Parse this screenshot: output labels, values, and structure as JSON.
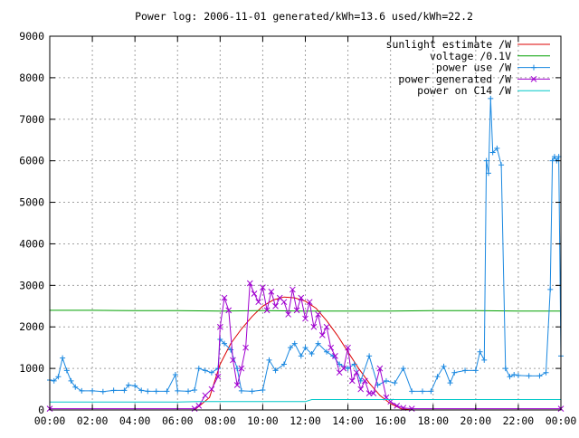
{
  "chart_data": {
    "type": "line",
    "title": "Power log: 2006-11-01 generated/kWh=13.6 used/kWh=22.2",
    "xlabel": "",
    "ylabel": "",
    "x_unit": "hours",
    "xlim": [
      0,
      24
    ],
    "ylim": [
      0,
      9000
    ],
    "grid": true,
    "legend_position": "top-right",
    "x_ticks": [
      {
        "value": 0,
        "label": "00:00"
      },
      {
        "value": 2,
        "label": "02:00"
      },
      {
        "value": 4,
        "label": "04:00"
      },
      {
        "value": 6,
        "label": "06:00"
      },
      {
        "value": 8,
        "label": "08:00"
      },
      {
        "value": 10,
        "label": "10:00"
      },
      {
        "value": 12,
        "label": "12:00"
      },
      {
        "value": 14,
        "label": "14:00"
      },
      {
        "value": 16,
        "label": "16:00"
      },
      {
        "value": 18,
        "label": "18:00"
      },
      {
        "value": 20,
        "label": "20:00"
      },
      {
        "value": 22,
        "label": "22:00"
      },
      {
        "value": 24,
        "label": "00:00"
      }
    ],
    "y_ticks": [
      {
        "value": 0,
        "label": "0"
      },
      {
        "value": 1000,
        "label": "1000"
      },
      {
        "value": 2000,
        "label": "2000"
      },
      {
        "value": 3000,
        "label": "3000"
      },
      {
        "value": 4000,
        "label": "4000"
      },
      {
        "value": 5000,
        "label": "5000"
      },
      {
        "value": 6000,
        "label": "6000"
      },
      {
        "value": 7000,
        "label": "7000"
      },
      {
        "value": 8000,
        "label": "8000"
      },
      {
        "value": 9000,
        "label": "9000"
      }
    ],
    "series": [
      {
        "name": "sunlight estimate /W",
        "color": "#dd0000",
        "marker": "none",
        "x": [
          0,
          6.8,
          7.5,
          8.0,
          8.5,
          9.0,
          9.5,
          10.0,
          10.5,
          11.0,
          11.5,
          12.0,
          12.5,
          13.0,
          13.5,
          14.0,
          14.5,
          15.0,
          15.5,
          16.0,
          16.5,
          17.0,
          24
        ],
        "y": [
          0,
          0,
          300,
          1100,
          1600,
          1950,
          2250,
          2500,
          2650,
          2720,
          2700,
          2620,
          2450,
          2150,
          1800,
          1400,
          1000,
          650,
          350,
          150,
          30,
          0,
          0
        ]
      },
      {
        "name": "voltage /0.1V",
        "color": "#00a000",
        "marker": "none",
        "x": [
          0,
          2,
          4,
          6,
          8,
          10,
          12,
          14,
          16,
          18,
          20,
          22,
          24
        ],
        "y": [
          2400,
          2400,
          2390,
          2390,
          2380,
          2390,
          2380,
          2380,
          2380,
          2390,
          2390,
          2380,
          2380
        ]
      },
      {
        "name": "power use /W",
        "color": "#1a88e0",
        "marker": "plus",
        "x": [
          0,
          0.2,
          0.4,
          0.6,
          0.8,
          1.0,
          1.2,
          1.5,
          2.0,
          2.5,
          3.0,
          3.5,
          3.7,
          4.0,
          4.3,
          4.6,
          5.0,
          5.5,
          5.9,
          6.0,
          6.5,
          6.8,
          7.0,
          7.3,
          7.6,
          7.9,
          8.0,
          8.2,
          8.5,
          8.8,
          9.0,
          9.5,
          10.0,
          10.3,
          10.6,
          11.0,
          11.3,
          11.5,
          11.8,
          12.0,
          12.3,
          12.6,
          13.0,
          13.3,
          13.6,
          14.0,
          14.3,
          14.6,
          15.0,
          15.4,
          15.8,
          16.2,
          16.6,
          17.0,
          17.5,
          17.9,
          18.2,
          18.5,
          18.8,
          19.0,
          19.5,
          20.0,
          20.2,
          20.4,
          20.5,
          20.6,
          20.7,
          20.8,
          21.0,
          21.2,
          21.4,
          21.6,
          21.8,
          22.0,
          22.5,
          23.0,
          23.3,
          23.5,
          23.6,
          23.7,
          23.8,
          23.9,
          24.0
        ],
        "y": [
          720,
          700,
          800,
          1250,
          950,
          700,
          550,
          460,
          460,
          440,
          470,
          470,
          600,
          580,
          470,
          450,
          450,
          450,
          850,
          460,
          450,
          480,
          1000,
          950,
          900,
          1000,
          1700,
          1600,
          1450,
          1000,
          460,
          450,
          480,
          1200,
          950,
          1100,
          1500,
          1600,
          1300,
          1500,
          1350,
          1600,
          1400,
          1300,
          1100,
          1000,
          1100,
          700,
          1300,
          600,
          700,
          650,
          1000,
          450,
          450,
          450,
          800,
          1050,
          650,
          900,
          950,
          950,
          1400,
          1200,
          6000,
          5700,
          7500,
          6200,
          6300,
          5900,
          1000,
          800,
          850,
          830,
          820,
          820,
          900,
          2900,
          6000,
          6100,
          6000,
          6100,
          1300
        ]
      },
      {
        "name": "power generated /W",
        "color": "#a000d0",
        "marker": "cross",
        "x": [
          0,
          6.8,
          7.0,
          7.3,
          7.6,
          7.9,
          8.0,
          8.2,
          8.4,
          8.6,
          8.8,
          9.0,
          9.2,
          9.4,
          9.6,
          9.8,
          10.0,
          10.2,
          10.4,
          10.6,
          10.8,
          11.0,
          11.2,
          11.4,
          11.6,
          11.8,
          12.0,
          12.2,
          12.4,
          12.6,
          12.8,
          13.0,
          13.2,
          13.4,
          13.6,
          13.8,
          14.0,
          14.2,
          14.4,
          14.6,
          14.8,
          15.0,
          15.2,
          15.5,
          15.8,
          16.0,
          16.3,
          16.6,
          17.0,
          24
        ],
        "y": [
          30,
          30,
          100,
          350,
          500,
          800,
          2000,
          2700,
          2400,
          1200,
          600,
          1000,
          1500,
          3050,
          2800,
          2600,
          2950,
          2400,
          2850,
          2500,
          2700,
          2600,
          2300,
          2900,
          2400,
          2700,
          2200,
          2600,
          2000,
          2300,
          1800,
          2000,
          1500,
          1300,
          900,
          1000,
          1500,
          700,
          900,
          500,
          700,
          400,
          400,
          1000,
          300,
          200,
          100,
          50,
          30,
          30
        ]
      },
      {
        "name": "power on C14 /W",
        "color": "#00c8c8",
        "marker": "none",
        "x": [
          0,
          2,
          4,
          6,
          7,
          8,
          10,
          12,
          12.3,
          14,
          16,
          18,
          20,
          22,
          24
        ],
        "y": [
          190,
          190,
          190,
          190,
          200,
          200,
          200,
          200,
          250,
          250,
          250,
          250,
          250,
          250,
          250
        ]
      }
    ]
  }
}
